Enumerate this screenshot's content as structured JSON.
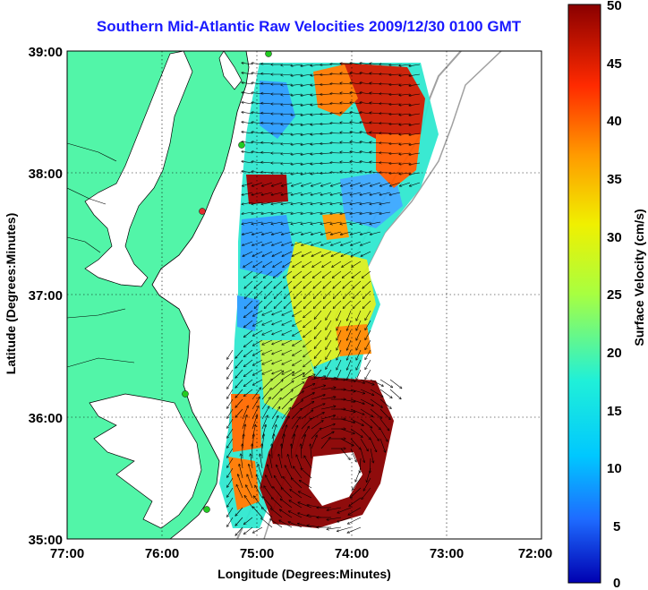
{
  "title": "Southern Mid-Atlantic Raw Velocities 2009/12/30 0100 GMT",
  "axes": {
    "xlabel": "Longitude (Degrees:Minutes)",
    "ylabel": "Latitude (Degrees:Minutes)",
    "xticks": [
      "77:00",
      "76:00",
      "75:00",
      "74:00",
      "73:00",
      "72:00"
    ],
    "yticks": [
      "39:00",
      "38:00",
      "37:00",
      "36:00",
      "35:00"
    ],
    "xlim": [
      -77,
      -72
    ],
    "ylim": [
      35,
      39
    ],
    "grid": "dotted"
  },
  "colorbar": {
    "label": "Surface Velocity (cm/s)",
    "ticks": [
      "50",
      "45",
      "40",
      "35",
      "30",
      "25",
      "20",
      "15",
      "10",
      "5",
      "0"
    ],
    "range": [
      0,
      50
    ],
    "colormap": "jet"
  },
  "colors": {
    "land": "#52f5a8",
    "water": "#ffffff",
    "title": "#1a1aff",
    "vectors": "#000000",
    "coastline": "#000000",
    "bathymetry": "#a0a0a0",
    "stations": "#22cc22",
    "station_highlight": "#e03030"
  }
}
